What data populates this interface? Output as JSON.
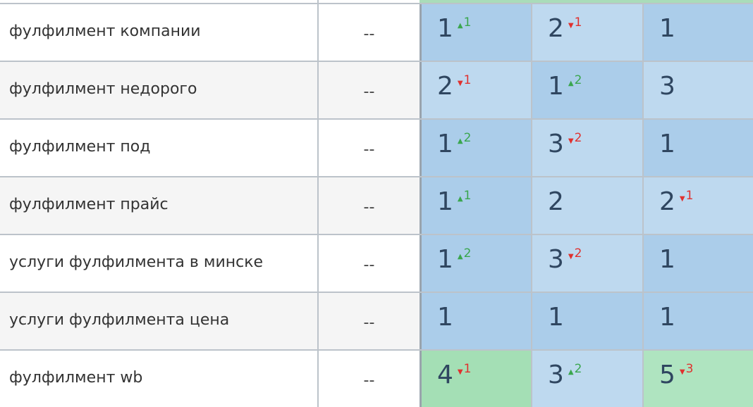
{
  "table": {
    "rows": [
      {
        "keyword": "фулфилмент компании",
        "freq": "--",
        "cells": [
          {
            "pos": 1,
            "bg": "#abcdea",
            "change": {
              "dir": "up",
              "value": 1
            }
          },
          {
            "pos": 2,
            "bg": "#bed9ef",
            "change": {
              "dir": "down",
              "value": 1
            }
          },
          {
            "pos": 1,
            "bg": "#abcdea"
          }
        ]
      },
      {
        "keyword": "фулфилмент недорого",
        "freq": "--",
        "cells": [
          {
            "pos": 2,
            "bg": "#bed9ef",
            "change": {
              "dir": "down",
              "value": 1
            }
          },
          {
            "pos": 1,
            "bg": "#abcdea",
            "change": {
              "dir": "up",
              "value": 2
            }
          },
          {
            "pos": 3,
            "bg": "#bed9ef"
          }
        ]
      },
      {
        "keyword": "фулфилмент под",
        "freq": "--",
        "cells": [
          {
            "pos": 1,
            "bg": "#abcdea",
            "change": {
              "dir": "up",
              "value": 2
            }
          },
          {
            "pos": 3,
            "bg": "#bed9ef",
            "change": {
              "dir": "down",
              "value": 2
            }
          },
          {
            "pos": 1,
            "bg": "#abcdea"
          }
        ]
      },
      {
        "keyword": "фулфилмент прайс",
        "freq": "--",
        "cells": [
          {
            "pos": 1,
            "bg": "#abcdea",
            "change": {
              "dir": "up",
              "value": 1
            }
          },
          {
            "pos": 2,
            "bg": "#bed9ef"
          },
          {
            "pos": 2,
            "bg": "#bed9ef",
            "change": {
              "dir": "down",
              "value": 1
            }
          }
        ]
      },
      {
        "keyword": "услуги фулфилмента в минске",
        "freq": "--",
        "cells": [
          {
            "pos": 1,
            "bg": "#abcdea",
            "change": {
              "dir": "up",
              "value": 2
            }
          },
          {
            "pos": 3,
            "bg": "#bed9ef",
            "change": {
              "dir": "down",
              "value": 2
            }
          },
          {
            "pos": 1,
            "bg": "#abcdea"
          }
        ]
      },
      {
        "keyword": "услуги фулфилмента цена",
        "freq": "--",
        "cells": [
          {
            "pos": 1,
            "bg": "#abcdea"
          },
          {
            "pos": 1,
            "bg": "#abcdea"
          },
          {
            "pos": 1,
            "bg": "#abcdea"
          }
        ]
      },
      {
        "keyword": "фулфилмент wb",
        "freq": "--",
        "cells": [
          {
            "pos": 4,
            "bg": "#a4dfb5",
            "change": {
              "dir": "down",
              "value": 1
            }
          },
          {
            "pos": 3,
            "bg": "#bed9ef",
            "change": {
              "dir": "up",
              "value": 2
            }
          },
          {
            "pos": 5,
            "bg": "#afe4c0",
            "change": {
              "dir": "down",
              "value": 3
            }
          }
        ]
      }
    ]
  }
}
